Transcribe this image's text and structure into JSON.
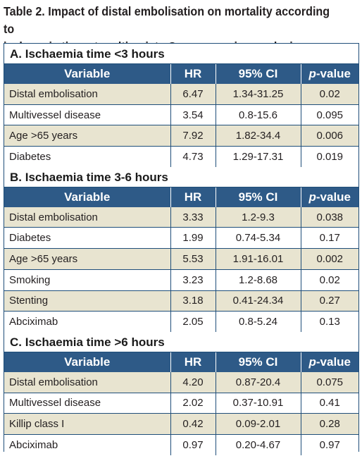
{
  "caption_line1": "Table 2. Impact of distal embolisation on mortality according to",
  "caption_line2": "ischaemia time at multivariate Cox-regression analysis.",
  "headers": {
    "variable": "Variable",
    "hr": "HR",
    "ci": "95% CI",
    "p_prefix": "p",
    "p_suffix": "-value"
  },
  "sections": [
    {
      "title": "A. Ischaemia time <3 hours",
      "rows": [
        {
          "variable": "Distal embolisation",
          "hr": "6.47",
          "ci": "1.34-31.25",
          "p": "0.02"
        },
        {
          "variable": "Multivessel disease",
          "hr": "3.54",
          "ci": "0.8-15.6",
          "p": "0.095"
        },
        {
          "variable": "Age >65 years",
          "hr": "7.92",
          "ci": "1.82-34.4",
          "p": "0.006"
        },
        {
          "variable": "Diabetes",
          "hr": "4.73",
          "ci": "1.29-17.31",
          "p": "0.019"
        }
      ]
    },
    {
      "title": "B. Ischaemia time 3-6 hours",
      "rows": [
        {
          "variable": "Distal embolisation",
          "hr": "3.33",
          "ci": "1.2-9.3",
          "p": "0.038"
        },
        {
          "variable": "Diabetes",
          "hr": "1.99",
          "ci": "0.74-5.34",
          "p": "0.17"
        },
        {
          "variable": "Age >65 years",
          "hr": "5.53",
          "ci": "1.91-16.01",
          "p": "0.002"
        },
        {
          "variable": "Smoking",
          "hr": "3.23",
          "ci": "1.2-8.68",
          "p": "0.02"
        },
        {
          "variable": "Stenting",
          "hr": "3.18",
          "ci": "0.41-24.34",
          "p": "0.27"
        },
        {
          "variable": "Abciximab",
          "hr": "2.05",
          "ci": "0.8-5.24",
          "p": "0.13"
        }
      ]
    },
    {
      "title": "C. Ischaemia time >6 hours",
      "rows": [
        {
          "variable": "Distal embolisation",
          "hr": "4.20",
          "ci": "0.87-20.4",
          "p": "0.075"
        },
        {
          "variable": "Multivessel disease",
          "hr": "2.02",
          "ci": "0.37-10.91",
          "p": "0.41"
        },
        {
          "variable": "Killip class I",
          "hr": "0.42",
          "ci": "0.09-2.01",
          "p": "0.28"
        },
        {
          "variable": "Abciximab",
          "hr": "0.97",
          "ci": "0.20-4.67",
          "p": "0.97"
        }
      ]
    }
  ]
}
